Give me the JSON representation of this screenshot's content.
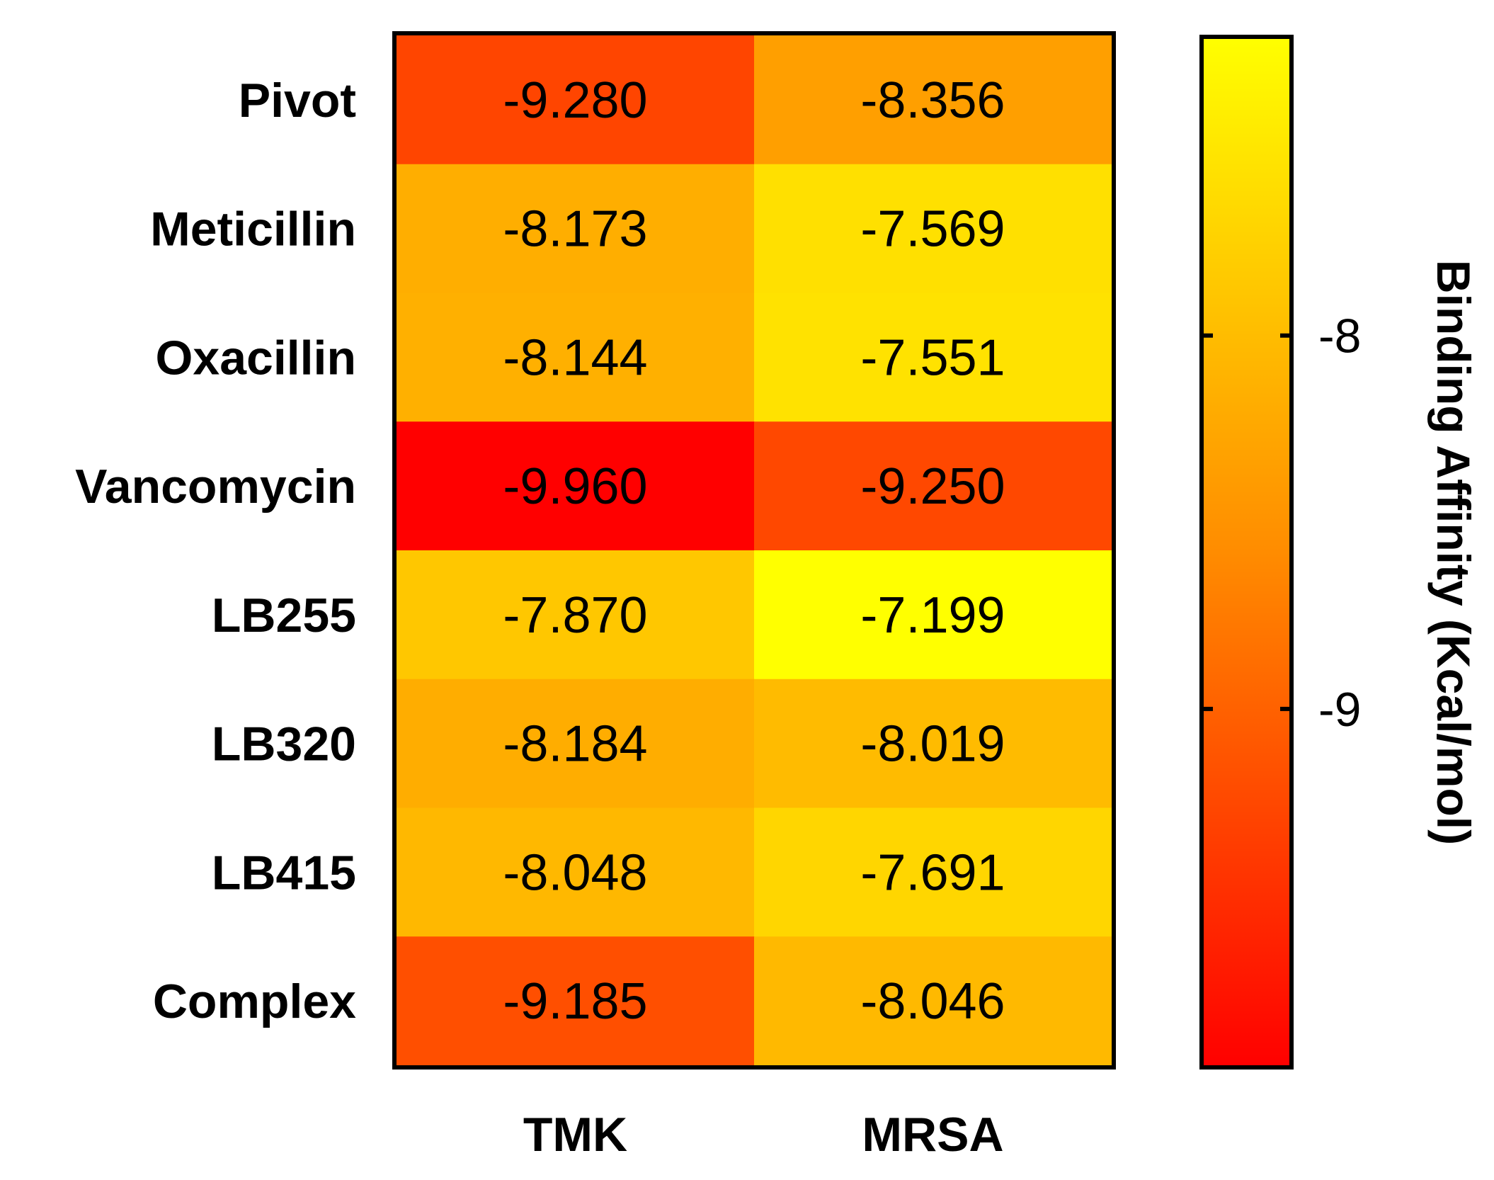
{
  "chart_data": {
    "type": "heatmap",
    "rows": [
      "Pivot",
      "Meticillin",
      "Oxacillin",
      "Vancomycin",
      "LB255",
      "LB320",
      "LB415",
      "Complex"
    ],
    "columns": [
      "TMK",
      "MRSA"
    ],
    "values": [
      [
        -9.28,
        -8.356
      ],
      [
        -8.173,
        -7.569
      ],
      [
        -8.144,
        -7.551
      ],
      [
        -9.96,
        -9.25
      ],
      [
        -7.87,
        -7.199
      ],
      [
        -8.184,
        -8.019
      ],
      [
        -8.048,
        -7.691
      ],
      [
        -9.185,
        -8.046
      ]
    ],
    "value_labels": [
      [
        "-9.280",
        "-8.356"
      ],
      [
        "-8.173",
        "-7.569"
      ],
      [
        "-8.144",
        "-7.551"
      ],
      [
        "-9.960",
        "-9.250"
      ],
      [
        "-7.870",
        "-7.199"
      ],
      [
        "-8.184",
        "-8.019"
      ],
      [
        "-8.048",
        "-7.691"
      ],
      [
        "-9.185",
        "-8.046"
      ]
    ],
    "colorbar": {
      "title": "Binding Affinity (Kcal/mol)",
      "range": [
        -9.96,
        -7.2
      ],
      "ticks": [
        -8,
        -9
      ],
      "tick_labels": [
        "-8",
        "-9"
      ],
      "colors": [
        "#ff0000",
        "#ff8c00",
        "#ffff00"
      ],
      "placement": "right"
    }
  }
}
